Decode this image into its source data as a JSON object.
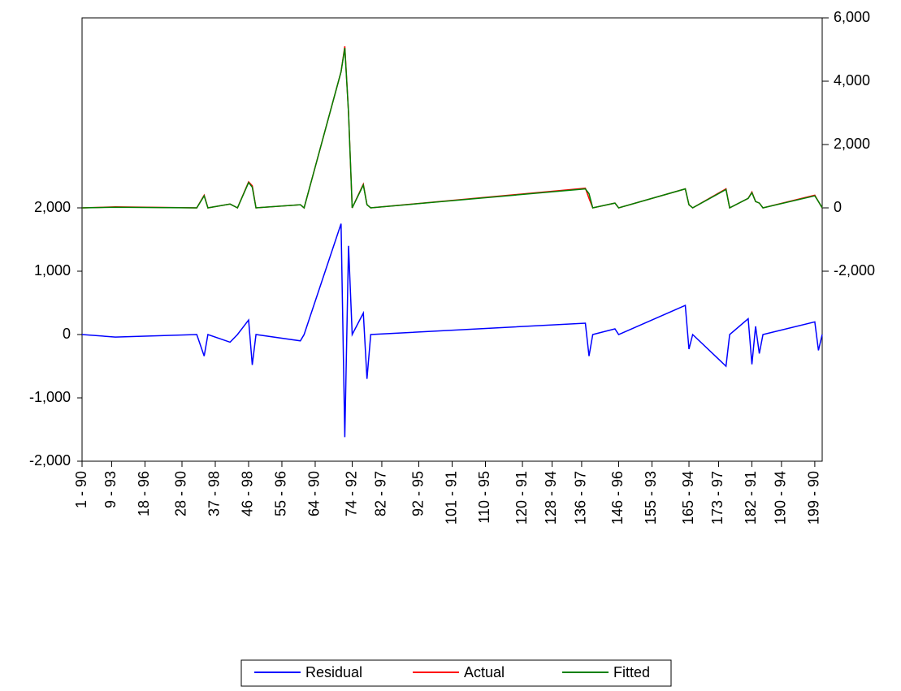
{
  "chart_data": {
    "type": "line",
    "x": [
      1,
      10,
      32,
      34,
      35,
      41,
      43,
      46,
      47,
      48,
      60,
      61,
      71,
      72,
      73,
      74,
      77,
      78,
      79,
      137,
      138,
      139,
      145,
      146,
      164,
      165,
      166,
      175,
      176,
      181,
      182,
      183,
      184,
      185,
      199,
      200,
      201
    ],
    "xlim": [
      1,
      201
    ],
    "xticks": [
      {
        "value": 1,
        "label": "1 - 90"
      },
      {
        "value": 9,
        "label": "9 - 93"
      },
      {
        "value": 18,
        "label": "18 - 96"
      },
      {
        "value": 28,
        "label": "28 - 90"
      },
      {
        "value": 37,
        "label": "37 - 98"
      },
      {
        "value": 46,
        "label": "46 - 98"
      },
      {
        "value": 55,
        "label": "55 - 96"
      },
      {
        "value": 64,
        "label": "64 - 90"
      },
      {
        "value": 74,
        "label": "74 - 92"
      },
      {
        "value": 82,
        "label": "82 - 97"
      },
      {
        "value": 92,
        "label": "92 - 95"
      },
      {
        "value": 101,
        "label": "101 - 91"
      },
      {
        "value": 110,
        "label": "110 - 95"
      },
      {
        "value": 120,
        "label": "120 - 91"
      },
      {
        "value": 128,
        "label": "128 - 94"
      },
      {
        "value": 136,
        "label": "136 - 97"
      },
      {
        "value": 146,
        "label": "146 - 96"
      },
      {
        "value": 155,
        "label": "155 - 93"
      },
      {
        "value": 165,
        "label": "165 - 94"
      },
      {
        "value": 173,
        "label": "173 - 97"
      },
      {
        "value": 182,
        "label": "182 - 91"
      },
      {
        "value": 190,
        "label": "190 - 94"
      },
      {
        "value": 199,
        "label": "199 - 90"
      }
    ],
    "ylim": [
      -2000,
      5000
    ],
    "yticks": [
      {
        "value": -2000,
        "label": "-2,000"
      },
      {
        "value": -1000,
        "label": "-1,000"
      },
      0,
      {
        "value": 1000,
        "label": "1,000"
      },
      {
        "value": 2000,
        "label": "2,000"
      }
    ],
    "y2lim": [
      -8000,
      6000
    ],
    "y2ticks": [
      {
        "value": -2000,
        "label": "-2,000"
      },
      0,
      {
        "value": 2000,
        "label": "2,000"
      },
      {
        "value": 4000,
        "label": "4,000"
      },
      {
        "value": 6000,
        "label": "6,000"
      }
    ],
    "series": [
      {
        "name": "Residual",
        "color": "#0000ff",
        "axis": "y",
        "values": [
          0,
          -40,
          0,
          -340,
          0,
          -120,
          0,
          230,
          -480,
          0,
          -100,
          0,
          1750,
          -1620,
          1400,
          0,
          340,
          -700,
          0,
          180,
          -340,
          0,
          90,
          0,
          460,
          -230,
          0,
          -500,
          0,
          250,
          -470,
          130,
          -300,
          0,
          200,
          -250,
          0
        ]
      },
      {
        "name": "Actual",
        "color": "#ff0000",
        "axis": "y2",
        "values": [
          0,
          30,
          0,
          400,
          0,
          120,
          0,
          820,
          700,
          0,
          100,
          0,
          4300,
          5100,
          3000,
          0,
          750,
          100,
          0,
          620,
          300,
          0,
          150,
          0,
          600,
          100,
          0,
          600,
          0,
          300,
          500,
          200,
          150,
          0,
          400,
          200,
          0
        ]
      },
      {
        "name": "Fitted",
        "color": "#008000",
        "axis": "y2",
        "values": [
          0,
          20,
          0,
          380,
          0,
          120,
          0,
          800,
          650,
          0,
          100,
          0,
          4300,
          5050,
          3000,
          0,
          720,
          100,
          0,
          600,
          450,
          0,
          150,
          0,
          600,
          100,
          0,
          580,
          0,
          300,
          480,
          200,
          150,
          0,
          380,
          200,
          0
        ]
      }
    ]
  }
}
